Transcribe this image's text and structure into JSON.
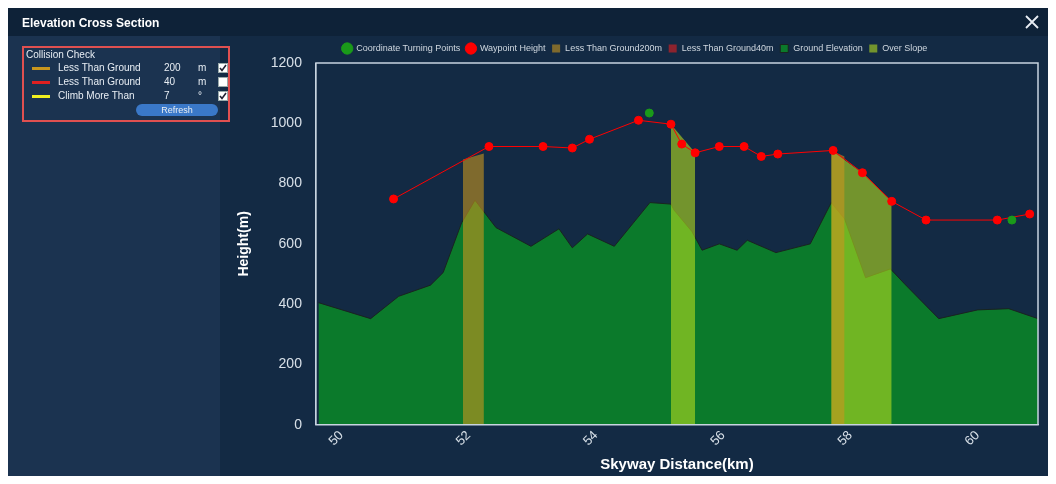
{
  "chart_data": {
    "type": "area",
    "title": "Elevation Cross Section",
    "xlabel": "Skyway Distance(km)",
    "ylabel": "Height(m)",
    "xlim": [
      49.6,
      60.95
    ],
    "xticks": [
      50,
      52,
      54,
      56,
      58,
      60
    ],
    "ylim": [
      0,
      1200
    ],
    "yticks": [
      0,
      200,
      400,
      600,
      800,
      1000,
      1200
    ],
    "grid": false,
    "legend": "top",
    "annotations": [
      "Collision Check",
      "Less Than Ground",
      "200",
      "m",
      "Less Than Ground",
      "40",
      "m",
      "Climb More Than",
      "7",
      "°",
      "Refresh"
    ],
    "series": [
      {
        "name": "Coordinate Turning Points",
        "type": "scatter",
        "color": "#1a9a1a",
        "x": [
          54.84,
          60.54
        ],
        "values": [
          1034,
          679
        ],
        "marker": "circle"
      },
      {
        "name": "Waypoint Height",
        "type": "line",
        "color": "#ff0000",
        "marker": "circle",
        "line_style": "solid",
        "x": [
          50.82,
          52.32,
          53.17,
          53.63,
          53.9,
          54.67,
          55.18,
          55.35,
          55.56,
          55.94,
          56.33,
          56.6,
          56.86,
          57.73,
          58.19,
          58.65,
          59.19,
          60.31,
          60.82
        ],
        "values": [
          749,
          923,
          923,
          918,
          947,
          1010,
          997,
          931,
          902,
          923,
          923,
          890,
          898,
          910,
          836,
          741,
          679,
          679,
          699
        ]
      },
      {
        "name": "Less Than Ground200m",
        "color": "#c8961e",
        "x": [
          51.91,
          52.24,
          55,
          57.7,
          57.91
        ],
        "values": [
          880,
          900,
          null,
          910,
          890
        ]
      },
      {
        "name": "Less Than Ground40m",
        "color": "#e02020"
      },
      {
        "name": "Ground Elevation",
        "color": "#0b7a2b",
        "x": [
          49.64,
          50.46,
          50.9,
          51.4,
          51.6,
          51.89,
          52.1,
          52.43,
          52.98,
          53.42,
          53.63,
          53.87,
          54.29,
          54.85,
          55.18,
          55.23,
          55.51,
          55.67,
          55.94,
          56.22,
          56.38,
          56.83,
          57.37,
          57.7,
          57.91,
          58.24,
          58.63,
          58.85,
          59.39,
          60.0,
          60.49,
          60.95
        ],
        "values": [
          405,
          352,
          426,
          463,
          505,
          670,
          745,
          654,
          592,
          650,
          587,
          633,
          592,
          737,
          732,
          712,
          641,
          579,
          600,
          579,
          612,
          571,
          600,
          737,
          683,
          488,
          517,
          468,
          352,
          381,
          385,
          352
        ]
      },
      {
        "name": "Over Slope",
        "color": "#b4dc1e",
        "x": [
          55.18,
          55.56,
          56.5,
          57.7,
          58.19,
          58.65
        ],
        "values": [
          997,
          902,
          null,
          910,
          836,
          741
        ]
      }
    ]
  }
}
